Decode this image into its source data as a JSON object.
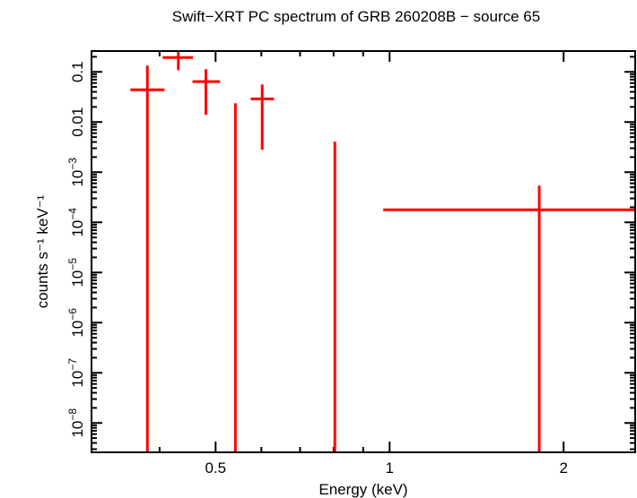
{
  "chart_data": {
    "type": "scatter",
    "title": "Swift−XRT PC spectrum of GRB 260208B − source 65",
    "xlabel": "Energy (keV)",
    "ylabel": "counts s⁻¹ keV⁻¹",
    "xscale": "log",
    "yscale": "log",
    "xlim": [
      0.305,
      2.66
    ],
    "ylim": [
      2.6e-09,
      0.26
    ],
    "grid": false,
    "x_ticks": [
      {
        "v": 0.5,
        "label": "0.5"
      },
      {
        "v": 1,
        "label": "1"
      },
      {
        "v": 2,
        "label": "2"
      }
    ],
    "y_ticks": [
      {
        "v": 0.1,
        "label": "0.1"
      },
      {
        "v": 0.01,
        "label": "0.01"
      },
      {
        "v": 0.001,
        "base": "10",
        "exp": "−3"
      },
      {
        "v": 0.0001,
        "base": "10",
        "exp": "−4"
      },
      {
        "v": 1e-05,
        "base": "10",
        "exp": "−5"
      },
      {
        "v": 1e-06,
        "base": "10",
        "exp": "−6"
      },
      {
        "v": 1e-07,
        "base": "10",
        "exp": "−7"
      },
      {
        "v": 1e-08,
        "base": "10",
        "exp": "−8"
      }
    ],
    "series_color": "#ff0000",
    "points": [
      {
        "x": 0.381,
        "xlo": 0.356,
        "xhi": 0.408,
        "y": 0.044,
        "ylo": null,
        "yhi": 0.133
      },
      {
        "x": 0.431,
        "xlo": 0.405,
        "xhi": 0.457,
        "y": 0.193,
        "ylo": 0.108,
        "yhi": 0.26
      },
      {
        "x": 0.481,
        "xlo": 0.456,
        "xhi": 0.509,
        "y": 0.064,
        "ylo": 0.0139,
        "yhi": 0.113
      },
      {
        "x": 0.541,
        "xlo": 0.541,
        "xhi": 0.541,
        "y": null,
        "ylo": null,
        "yhi": 0.0237
      },
      {
        "x": 0.602,
        "xlo": 0.575,
        "xhi": 0.631,
        "y": 0.029,
        "ylo": 0.0028,
        "yhi": 0.056
      },
      {
        "x": 0.804,
        "xlo": 0.804,
        "xhi": 0.804,
        "y": null,
        "ylo": null,
        "yhi": 0.00405
      },
      {
        "x": 1.815,
        "xlo": 0.975,
        "xhi": 2.66,
        "y": 0.000178,
        "ylo": null,
        "yhi": 0.00054
      }
    ]
  }
}
